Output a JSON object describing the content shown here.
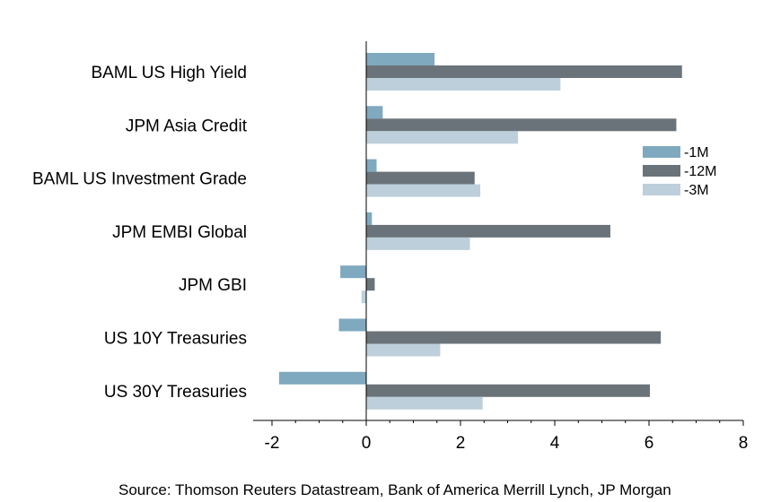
{
  "chart_data": {
    "type": "bar",
    "orientation": "horizontal",
    "categories": [
      "BAML US High Yield",
      "JPM Asia Credit",
      "BAML US Investment Grade",
      "JPM EMBI Global",
      "JPM GBI",
      "US 10Y Treasuries",
      "US 30Y Treasuries"
    ],
    "series": [
      {
        "name": "-1M",
        "color": "#7fa9bf",
        "values": [
          1.45,
          0.35,
          0.22,
          0.12,
          -0.55,
          -0.58,
          -1.85
        ]
      },
      {
        "name": "-12M",
        "color": "#6b737a",
        "values": [
          6.7,
          6.58,
          2.3,
          5.18,
          0.18,
          6.25,
          6.02
        ]
      },
      {
        "name": "-3M",
        "color": "#bccfdb",
        "values": [
          4.12,
          3.22,
          2.42,
          2.2,
          -0.1,
          1.57,
          2.47
        ]
      }
    ],
    "xlim": [
      -2.4,
      8
    ],
    "xticks": [
      "-2",
      "0",
      "2",
      "4",
      "6",
      "8"
    ],
    "xtick_values": [
      -2,
      0,
      2,
      4,
      6,
      8
    ],
    "legend_position": "right",
    "grid": false
  },
  "source": "Source: Thomson Reuters Datastream, Bank of America Merrill Lynch, JP Morgan"
}
